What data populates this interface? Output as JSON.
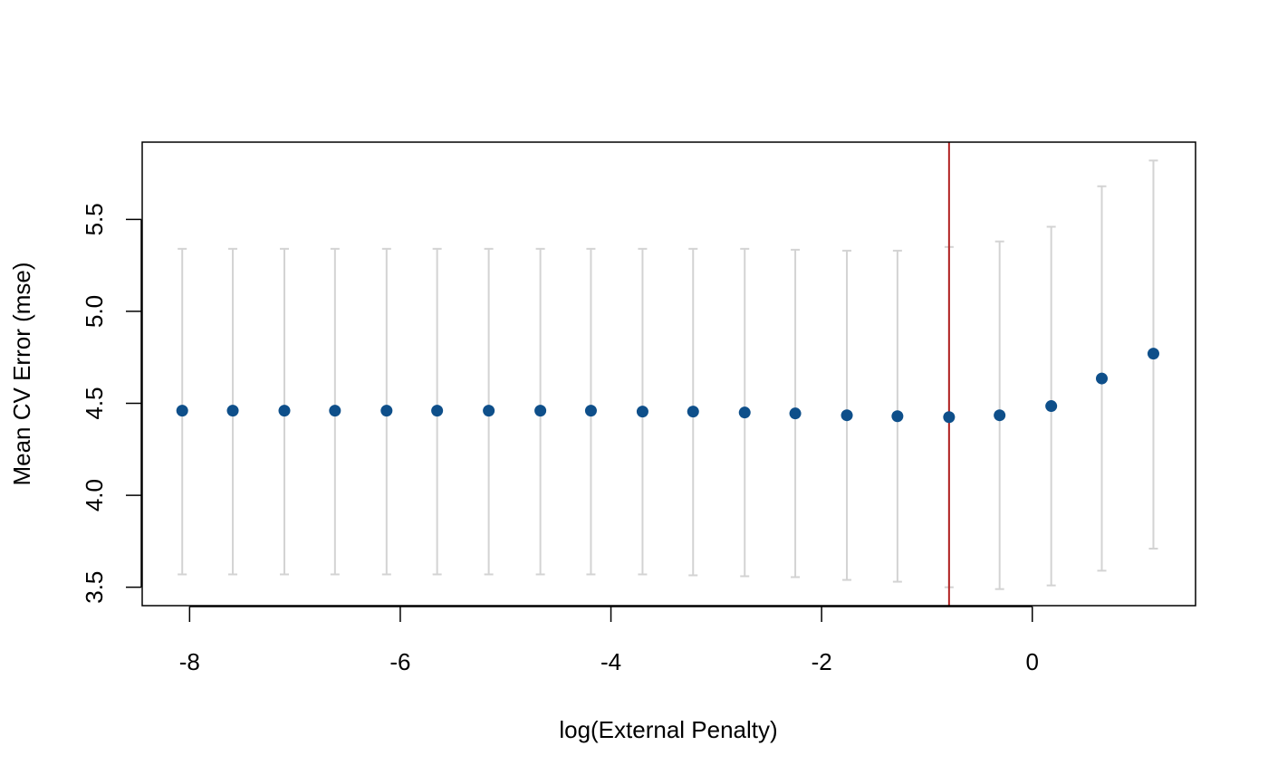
{
  "chart_data": {
    "type": "scatter",
    "title": "",
    "xlabel": "log(External Penalty)",
    "ylabel": "Mean CV Error (mse)",
    "xlim": [
      -8.45,
      1.55
    ],
    "ylim": [
      3.4,
      5.92
    ],
    "x_ticks": [
      {
        "value": -8,
        "label": "-8"
      },
      {
        "value": -6,
        "label": "-6"
      },
      {
        "value": -4,
        "label": "-4"
      },
      {
        "value": -2,
        "label": "-2"
      },
      {
        "value": 0,
        "label": "0"
      }
    ],
    "y_ticks": [
      {
        "value": 3.5,
        "label": "3.5"
      },
      {
        "value": 4.0,
        "label": "4.0"
      },
      {
        "value": 4.5,
        "label": "4.5"
      },
      {
        "value": 5.0,
        "label": "5.0"
      },
      {
        "value": 5.5,
        "label": "5.5"
      }
    ],
    "points": [
      {
        "x": -8.07,
        "y": 4.46,
        "lower": 3.57,
        "upper": 5.34
      },
      {
        "x": -7.59,
        "y": 4.46,
        "lower": 3.57,
        "upper": 5.34
      },
      {
        "x": -7.1,
        "y": 4.46,
        "lower": 3.57,
        "upper": 5.34
      },
      {
        "x": -6.62,
        "y": 4.46,
        "lower": 3.57,
        "upper": 5.34
      },
      {
        "x": -6.13,
        "y": 4.46,
        "lower": 3.57,
        "upper": 5.34
      },
      {
        "x": -5.65,
        "y": 4.46,
        "lower": 3.57,
        "upper": 5.34
      },
      {
        "x": -5.16,
        "y": 4.46,
        "lower": 3.57,
        "upper": 5.34
      },
      {
        "x": -4.67,
        "y": 4.46,
        "lower": 3.57,
        "upper": 5.34
      },
      {
        "x": -4.19,
        "y": 4.46,
        "lower": 3.57,
        "upper": 5.34
      },
      {
        "x": -3.7,
        "y": 4.455,
        "lower": 3.57,
        "upper": 5.34
      },
      {
        "x": -3.22,
        "y": 4.455,
        "lower": 3.565,
        "upper": 5.34
      },
      {
        "x": -2.73,
        "y": 4.45,
        "lower": 3.56,
        "upper": 5.34
      },
      {
        "x": -2.25,
        "y": 4.445,
        "lower": 3.555,
        "upper": 5.335
      },
      {
        "x": -1.76,
        "y": 4.435,
        "lower": 3.54,
        "upper": 5.33
      },
      {
        "x": -1.28,
        "y": 4.43,
        "lower": 3.53,
        "upper": 5.33
      },
      {
        "x": -0.79,
        "y": 4.425,
        "lower": 3.5,
        "upper": 5.35
      },
      {
        "x": -0.31,
        "y": 4.435,
        "lower": 3.49,
        "upper": 5.38
      },
      {
        "x": 0.18,
        "y": 4.485,
        "lower": 3.51,
        "upper": 5.46
      },
      {
        "x": 0.66,
        "y": 4.635,
        "lower": 3.59,
        "upper": 5.68
      },
      {
        "x": 1.15,
        "y": 4.77,
        "lower": 3.71,
        "upper": 5.82
      }
    ],
    "vline": {
      "x": -0.79,
      "color": "#B22222"
    },
    "point_color": "#0E4F8A",
    "errorbar_color": "#D3D3D3",
    "grid": false,
    "legend": "none"
  }
}
